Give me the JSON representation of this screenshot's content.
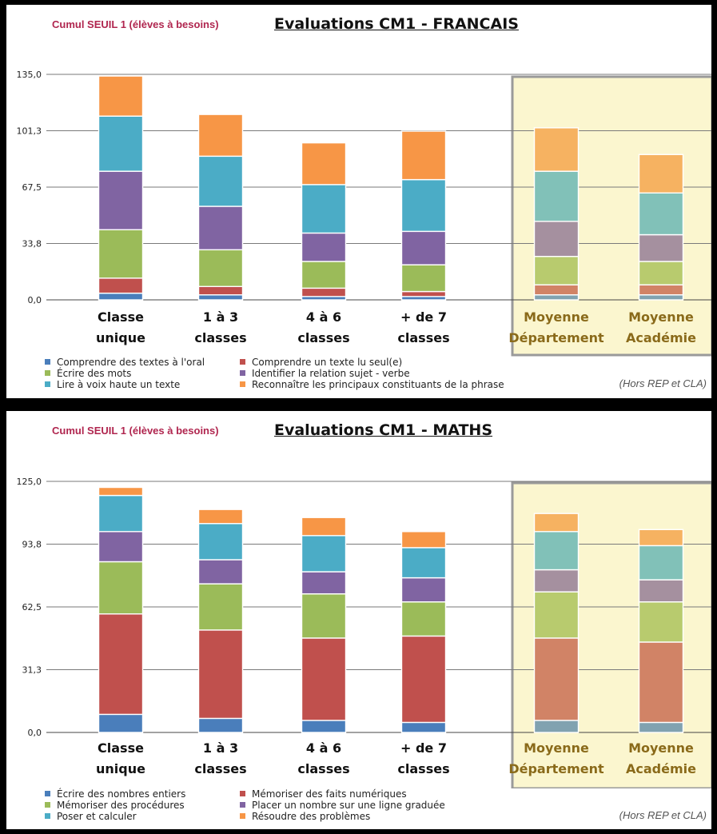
{
  "chart_data": [
    {
      "type": "bar",
      "stacked": true,
      "subtitle": "Cumul SEUIL 1 (élèves à besoins)",
      "title": "Evaluations CM1 - FRANCAIS",
      "note": "(Hors REP et CLA)",
      "categories": [
        [
          "Classe",
          "unique"
        ],
        [
          "1 à 3",
          "classes"
        ],
        [
          "4 à 6",
          "classes"
        ],
        [
          "+ de 7",
          "classes"
        ],
        [
          "Moyenne",
          "Département"
        ],
        [
          "Moyenne",
          "Académie"
        ]
      ],
      "highlighted_categories": [
        4,
        5
      ],
      "ylim": [
        0,
        135
      ],
      "yticks": [
        "0,0",
        "33,8",
        "67,5",
        "101,3",
        "135,0"
      ],
      "grid": true,
      "legend_position": "bottom",
      "series": [
        {
          "name": "Comprendre des textes à l'oral",
          "color": "#4a7ebb",
          "values": [
            4,
            3,
            2,
            2,
            3,
            3
          ]
        },
        {
          "name": "Comprendre un texte lu seul(e)",
          "color": "#c0504d",
          "values": [
            9,
            5,
            5,
            3,
            6,
            6
          ]
        },
        {
          "name": "Écrire des mots",
          "color": "#9bbb59",
          "values": [
            29,
            22,
            16,
            16,
            17,
            14
          ]
        },
        {
          "name": "Identifier la relation sujet - verbe",
          "color": "#8064a2",
          "values": [
            35,
            26,
            17,
            20,
            21,
            16
          ]
        },
        {
          "name": "Lire à voix haute un texte",
          "color": "#4bacc6",
          "values": [
            33,
            30,
            29,
            31,
            30,
            25
          ]
        },
        {
          "name": "Reconnaître les principaux constituants de la phrase",
          "color": "#f79646",
          "values": [
            24,
            25,
            25,
            29,
            26,
            23
          ]
        }
      ]
    },
    {
      "type": "bar",
      "stacked": true,
      "subtitle": "Cumul SEUIL 1 (élèves à besoins)",
      "title": "Evaluations CM1 - MATHS",
      "note": "(Hors REP et CLA)",
      "categories": [
        [
          "Classe",
          "unique"
        ],
        [
          "1 à 3",
          "classes"
        ],
        [
          "4 à 6",
          "classes"
        ],
        [
          "+ de 7",
          "classes"
        ],
        [
          "Moyenne",
          "Département"
        ],
        [
          "Moyenne",
          "Académie"
        ]
      ],
      "highlighted_categories": [
        4,
        5
      ],
      "ylim": [
        0,
        125
      ],
      "yticks": [
        "0,0",
        "31,3",
        "62,5",
        "93,8",
        "125,0"
      ],
      "grid": true,
      "legend_position": "bottom",
      "series": [
        {
          "name": "Écrire des nombres entiers",
          "color": "#4a7ebb",
          "values": [
            9,
            7,
            6,
            5,
            6,
            5
          ]
        },
        {
          "name": "Mémoriser des faits numériques",
          "color": "#c0504d",
          "values": [
            50,
            44,
            41,
            43,
            41,
            40
          ]
        },
        {
          "name": "Mémoriser des procédures",
          "color": "#9bbb59",
          "values": [
            26,
            23,
            22,
            17,
            23,
            20
          ]
        },
        {
          "name": "Placer un nombre sur une ligne graduée",
          "color": "#8064a2",
          "values": [
            15,
            12,
            11,
            12,
            11,
            11
          ]
        },
        {
          "name": "Poser et calculer",
          "color": "#4bacc6",
          "values": [
            18,
            18,
            18,
            15,
            19,
            17
          ]
        },
        {
          "name": "Résoudre des problèmes",
          "color": "#f79646",
          "values": [
            4,
            7,
            9,
            8,
            9,
            8
          ]
        }
      ]
    }
  ]
}
